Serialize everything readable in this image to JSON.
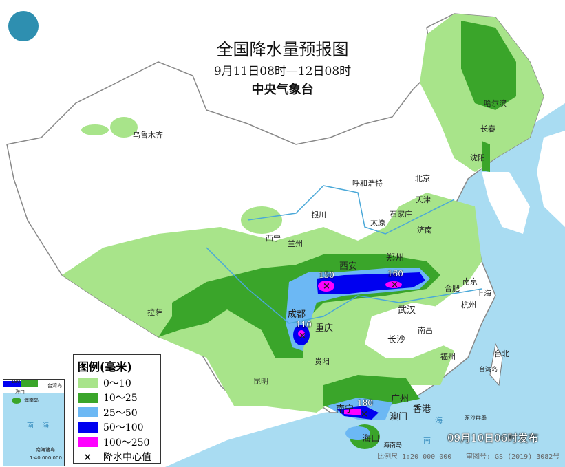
{
  "header": {
    "title": "全国降水量预报图",
    "period": "9月11日08时—12日08时",
    "issuer": "中央气象台"
  },
  "colors": {
    "sea": "#a9dcf2",
    "land": "#ffffff",
    "rain_0_10": "#a8e48a",
    "rain_10_25": "#3aa52a",
    "rain_25_50": "#6cb8f4",
    "rain_50_100": "#0000f0",
    "rain_100_250": "#ff00ff"
  },
  "legend": {
    "title": "图例(毫米)",
    "items": [
      {
        "label": "0～10",
        "color": "#a8e48a"
      },
      {
        "label": "10～25",
        "color": "#3aa52a"
      },
      {
        "label": "25～50",
        "color": "#6cb8f4"
      },
      {
        "label": "50～100",
        "color": "#0000f0"
      },
      {
        "label": "100～250",
        "color": "#ff00ff"
      }
    ],
    "center_label": "降水中心值",
    "center_symbol": "×"
  },
  "cities": [
    "乌鲁木齐",
    "哈尔滨",
    "长春",
    "沈阳",
    "北京",
    "天津",
    "呼和浩特",
    "石家庄",
    "太原",
    "济南",
    "银川",
    "西宁",
    "兰州",
    "西安",
    "郑州",
    "合肥",
    "南京",
    "上海",
    "杭州",
    "武汉",
    "成都",
    "重庆",
    "拉萨",
    "长沙",
    "南昌",
    "福州",
    "台北",
    "贵阳",
    "昆明",
    "南宁",
    "广州",
    "澳门",
    "香港",
    "海口"
  ],
  "rain_centers": [
    {
      "value": "150",
      "near": "西安南"
    },
    {
      "value": "160",
      "near": "合肥西"
    },
    {
      "value": "110",
      "near": "重庆西"
    },
    {
      "value": "180",
      "near": "南宁东南"
    }
  ],
  "labels": {
    "sea_south": "南",
    "sea_south2": "海",
    "hainan": "海南岛",
    "taiwan": "台湾岛",
    "dongsha": "东沙群岛"
  },
  "inset": {
    "sea": "南海",
    "islands": "南海诸岛",
    "scale": "1:40 000 000",
    "value": "180",
    "haikou": "海口",
    "hainan": "海南岛",
    "taiwan": "台湾岛"
  },
  "footer": {
    "published": "09月10日06时发布",
    "scale": "比例尺 1:20 000 000",
    "review_no": "审图号: GS (2019) 3082号"
  }
}
